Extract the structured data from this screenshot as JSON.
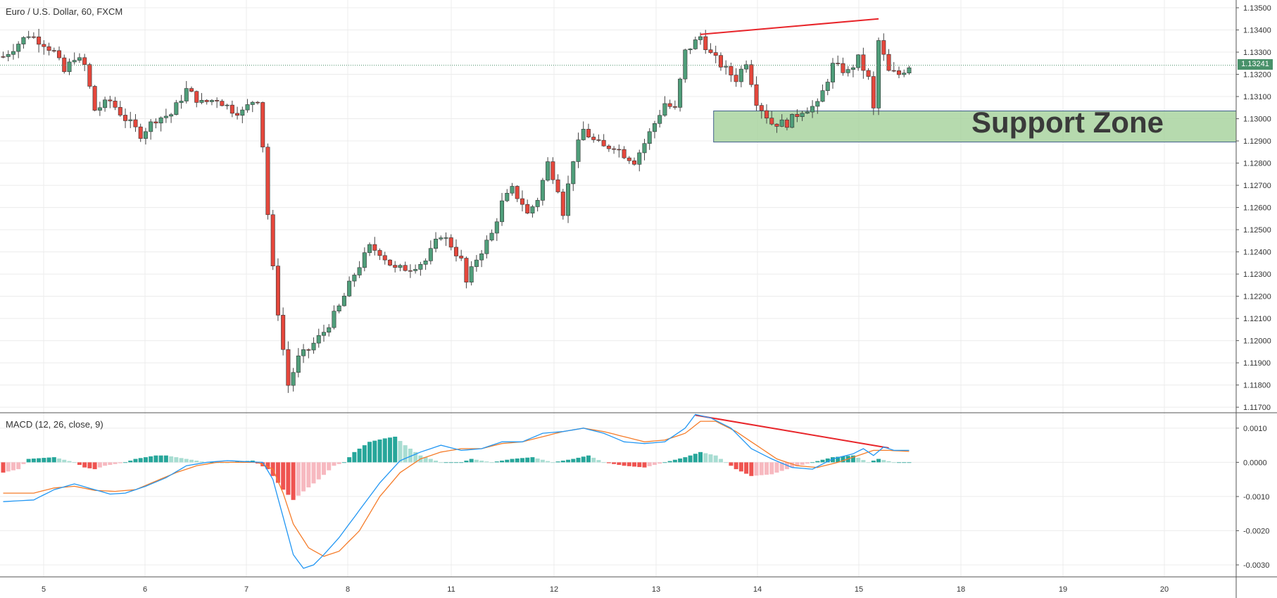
{
  "header": {
    "symbol_title": "Euro / U.S. Dollar, 60, FXCM",
    "macd_title": "MACD (12, 26, close, 9)",
    "last_price": "1.13241",
    "zone_label": "Support Zone"
  },
  "colors": {
    "up": "#4f9e7a",
    "down": "#e5473c",
    "hist_up_strong": "#26a69a",
    "hist_up_weak": "#a8ddd2",
    "hist_down_strong": "#ef5350",
    "hist_down_weak": "#f7b9c0",
    "macd_line": "#2196f3",
    "signal_line": "#f57c2a",
    "zone_fill": "#a9d3a0",
    "trend_line": "#e8252a"
  },
  "chart_data": [
    {
      "type": "candlestick",
      "title": "Euro / U.S. Dollar, 60, FXCM",
      "x_ticks": [
        "5",
        "6",
        "7",
        "8",
        "11",
        "12",
        "13",
        "14",
        "15",
        "18",
        "19",
        "20"
      ],
      "y_ticks": [
        "1.13500",
        "1.13400",
        "1.13300",
        "1.13200",
        "1.13100",
        "1.13000",
        "1.12900",
        "1.12800",
        "1.12700",
        "1.12600",
        "1.12500",
        "1.12400",
        "1.12300",
        "1.12200",
        "1.12100",
        "1.12000",
        "1.11900",
        "1.11800",
        "1.11700"
      ],
      "ylim": [
        1.11675,
        1.13535
      ],
      "last_price": 1.13241,
      "path": [
        [
          0,
          1.1328
        ],
        [
          5,
          1.1338
        ],
        [
          8,
          1.1334
        ],
        [
          10,
          1.133
        ],
        [
          12,
          1.1321
        ],
        [
          14,
          1.1328
        ],
        [
          16,
          1.1324
        ],
        [
          18,
          1.1304
        ],
        [
          21,
          1.1308
        ],
        [
          24,
          1.13
        ],
        [
          27,
          1.1293
        ],
        [
          30,
          1.13
        ],
        [
          33,
          1.1302
        ],
        [
          36,
          1.1313
        ],
        [
          39,
          1.1307
        ],
        [
          42,
          1.1309
        ],
        [
          45,
          1.1304
        ],
        [
          47,
          1.1303
        ],
        [
          49,
          1.1308
        ],
        [
          50,
          1.1309
        ],
        [
          51,
          1.1288
        ],
        [
          52,
          1.1257
        ],
        [
          53,
          1.1232
        ],
        [
          54,
          1.1213
        ],
        [
          55,
          1.1196
        ],
        [
          56,
          1.118
        ],
        [
          58,
          1.1192
        ],
        [
          60,
          1.1196
        ],
        [
          63,
          1.1204
        ],
        [
          66,
          1.1215
        ],
        [
          69,
          1.123
        ],
        [
          72,
          1.1242
        ],
        [
          74,
          1.124
        ],
        [
          77,
          1.1232
        ],
        [
          80,
          1.1233
        ],
        [
          83,
          1.1236
        ],
        [
          86,
          1.1248
        ],
        [
          88,
          1.1243
        ],
        [
          90,
          1.1236
        ],
        [
          91,
          1.1226
        ],
        [
          93,
          1.1237
        ],
        [
          96,
          1.1248
        ],
        [
          98,
          1.1262
        ],
        [
          100,
          1.1268
        ],
        [
          102,
          1.1262
        ],
        [
          103,
          1.1257
        ],
        [
          105,
          1.1264
        ],
        [
          107,
          1.128
        ],
        [
          109,
          1.1269
        ],
        [
          110,
          1.1258
        ],
        [
          112,
          1.1282
        ],
        [
          114,
          1.1295
        ],
        [
          116,
          1.129
        ],
        [
          118,
          1.1287
        ],
        [
          120,
          1.1288
        ],
        [
          122,
          1.1284
        ],
        [
          124,
          1.1281
        ],
        [
          126,
          1.1289
        ],
        [
          128,
          1.1298
        ],
        [
          130,
          1.1307
        ],
        [
          132,
          1.1304
        ],
        [
          134,
          1.133
        ],
        [
          137,
          1.1337
        ],
        [
          139,
          1.1329
        ],
        [
          142,
          1.1322
        ],
        [
          144,
          1.1318
        ],
        [
          146,
          1.1326
        ],
        [
          148,
          1.1308
        ],
        [
          151,
          1.1298
        ],
        [
          154,
          1.1298
        ],
        [
          157,
          1.1304
        ],
        [
          160,
          1.1306
        ],
        [
          163,
          1.1324
        ],
        [
          166,
          1.1321
        ],
        [
          168,
          1.1327
        ],
        [
          170,
          1.1318
        ],
        [
          171,
          1.1304
        ],
        [
          172,
          1.1335
        ],
        [
          174,
          1.1321
        ],
        [
          176,
          1.132
        ],
        [
          178,
          1.1324
        ]
      ]
    },
    {
      "type": "macd",
      "title": "MACD (12, 26, close, 9)",
      "parameters": {
        "fast": 12,
        "slow": 26,
        "source": "close",
        "signal": 9
      },
      "y_ticks": [
        "0.0010",
        "0.0000",
        "-0.0010",
        "-0.0020",
        "-0.0030"
      ],
      "ylim": [
        -0.00335,
        0.00145
      ],
      "series": [
        {
          "key": "macd",
          "points": [
            [
              0,
              -0.00115
            ],
            [
              6,
              -0.0011
            ],
            [
              10,
              -0.0008
            ],
            [
              14,
              -0.00063
            ],
            [
              18,
              -0.0008
            ],
            [
              21,
              -0.00093
            ],
            [
              24,
              -0.0009
            ],
            [
              28,
              -0.0007
            ],
            [
              32,
              -0.00045
            ],
            [
              36,
              -0.0001
            ],
            [
              40,
              0.0
            ],
            [
              44,
              5e-05
            ],
            [
              48,
              2e-05
            ],
            [
              51,
              0.0
            ],
            [
              53,
              -0.0005
            ],
            [
              55,
              -0.0016
            ],
            [
              57,
              -0.0027
            ],
            [
              59,
              -0.0031
            ],
            [
              61,
              -0.003
            ],
            [
              63,
              -0.0027
            ],
            [
              66,
              -0.0022
            ],
            [
              70,
              -0.0014
            ],
            [
              74,
              -0.0006
            ],
            [
              78,
              5e-05
            ],
            [
              82,
              0.0003
            ],
            [
              86,
              0.0005
            ],
            [
              90,
              0.00035
            ],
            [
              94,
              0.0004
            ],
            [
              98,
              0.0006
            ],
            [
              102,
              0.0006
            ],
            [
              106,
              0.00085
            ],
            [
              110,
              0.0009
            ],
            [
              114,
              0.001
            ],
            [
              118,
              0.00085
            ],
            [
              122,
              0.0006
            ],
            [
              126,
              0.00055
            ],
            [
              130,
              0.0006
            ],
            [
              134,
              0.001
            ],
            [
              136,
              0.0014
            ],
            [
              139,
              0.0013
            ],
            [
              143,
              0.001
            ],
            [
              147,
              0.0004
            ],
            [
              151,
              0.0001
            ],
            [
              155,
              -0.00015
            ],
            [
              159,
              -0.0002
            ],
            [
              163,
              0.0001
            ],
            [
              167,
              0.00025
            ],
            [
              169,
              0.0004
            ],
            [
              171,
              0.0002
            ],
            [
              173,
              0.00045
            ],
            [
              175,
              0.00035
            ],
            [
              178,
              0.00035
            ]
          ]
        },
        {
          "key": "signal",
          "points": [
            [
              0,
              -0.0009
            ],
            [
              6,
              -0.0009
            ],
            [
              10,
              -0.00075
            ],
            [
              14,
              -0.0007
            ],
            [
              18,
              -0.00082
            ],
            [
              22,
              -0.00085
            ],
            [
              26,
              -0.0008
            ],
            [
              30,
              -0.00055
            ],
            [
              34,
              -0.0003
            ],
            [
              38,
              -0.0001
            ],
            [
              42,
              0.0
            ],
            [
              46,
              0.0
            ],
            [
              50,
              0.0
            ],
            [
              53,
              -0.0002
            ],
            [
              55,
              -0.0009
            ],
            [
              57,
              -0.0018
            ],
            [
              60,
              -0.0025
            ],
            [
              63,
              -0.00275
            ],
            [
              66,
              -0.0026
            ],
            [
              70,
              -0.002
            ],
            [
              74,
              -0.001
            ],
            [
              78,
              -0.0003
            ],
            [
              82,
              0.0001
            ],
            [
              86,
              0.0003
            ],
            [
              90,
              0.0004
            ],
            [
              94,
              0.0004
            ],
            [
              98,
              0.00055
            ],
            [
              102,
              0.0006
            ],
            [
              106,
              0.00075
            ],
            [
              110,
              0.0009
            ],
            [
              114,
              0.001
            ],
            [
              118,
              0.0009
            ],
            [
              122,
              0.00075
            ],
            [
              126,
              0.0006
            ],
            [
              130,
              0.00065
            ],
            [
              134,
              0.00085
            ],
            [
              137,
              0.0012
            ],
            [
              140,
              0.0012
            ],
            [
              144,
              0.0009
            ],
            [
              148,
              0.0005
            ],
            [
              152,
              0.0001
            ],
            [
              156,
              -0.0001
            ],
            [
              160,
              -0.00015
            ],
            [
              164,
              0.0
            ],
            [
              168,
              0.0002
            ],
            [
              171,
              0.00035
            ],
            [
              174,
              0.00035
            ],
            [
              178,
              0.00032
            ]
          ]
        },
        {
          "key": "histogram",
          "points": [
            [
              0,
              -0.0003
            ],
            [
              3,
              -0.0002
            ],
            [
              5,
              0.0001
            ],
            [
              10,
              0.00015
            ],
            [
              14,
              0.0
            ],
            [
              16,
              -0.00015
            ],
            [
              18,
              -0.0002
            ],
            [
              20,
              -0.0001
            ],
            [
              24,
              0.0
            ],
            [
              26,
              0.0001
            ],
            [
              28,
              0.00015
            ],
            [
              30,
              0.0002
            ],
            [
              32,
              0.0002
            ],
            [
              36,
              0.0001
            ],
            [
              40,
              0.0
            ],
            [
              44,
              0.0
            ],
            [
              49,
              5e-05
            ],
            [
              52,
              -0.0002
            ],
            [
              55,
              -0.0008
            ],
            [
              57,
              -0.0011
            ],
            [
              59,
              -0.00085
            ],
            [
              62,
              -0.0005
            ],
            [
              65,
              -0.0001
            ],
            [
              67,
              0.0
            ],
            [
              69,
              0.0003
            ],
            [
              72,
              0.0006
            ],
            [
              75,
              0.0007
            ],
            [
              77,
              0.00075
            ],
            [
              79,
              0.0005
            ],
            [
              82,
              0.0002
            ],
            [
              86,
              0.0
            ],
            [
              90,
              0.0
            ],
            [
              92,
              0.0001
            ],
            [
              96,
              0.0
            ],
            [
              100,
              0.0001
            ],
            [
              104,
              0.00015
            ],
            [
              108,
              0.0
            ],
            [
              112,
              0.0001
            ],
            [
              115,
              0.0002
            ],
            [
              118,
              0.0
            ],
            [
              122,
              -0.0001
            ],
            [
              126,
              -0.00015
            ],
            [
              130,
              0.0
            ],
            [
              134,
              0.00015
            ],
            [
              137,
              0.0003
            ],
            [
              140,
              0.0002
            ],
            [
              142,
              0.0
            ],
            [
              144,
              -0.0002
            ],
            [
              147,
              -0.0004
            ],
            [
              151,
              -0.00035
            ],
            [
              155,
              -0.00015
            ],
            [
              159,
              0.0
            ],
            [
              163,
              0.00015
            ],
            [
              167,
              0.0002
            ],
            [
              170,
              0.0
            ],
            [
              172,
              0.0001
            ],
            [
              175,
              0.0
            ],
            [
              178,
              0.0
            ]
          ]
        }
      ]
    }
  ],
  "annotations": {
    "support_zone": {
      "label": "Support Zone",
      "from_bar": 140,
      "to_bar": 300,
      "price_low": 1.12895,
      "price_high": 1.13035
    },
    "price_trendline": {
      "from_bar": 137,
      "from_price": 1.1338,
      "to_bar": 172,
      "to_price": 1.1345
    },
    "macd_trendline": {
      "from_bar": 136,
      "from_value": 0.00138,
      "to_bar": 174,
      "to_value": 0.00042
    }
  }
}
